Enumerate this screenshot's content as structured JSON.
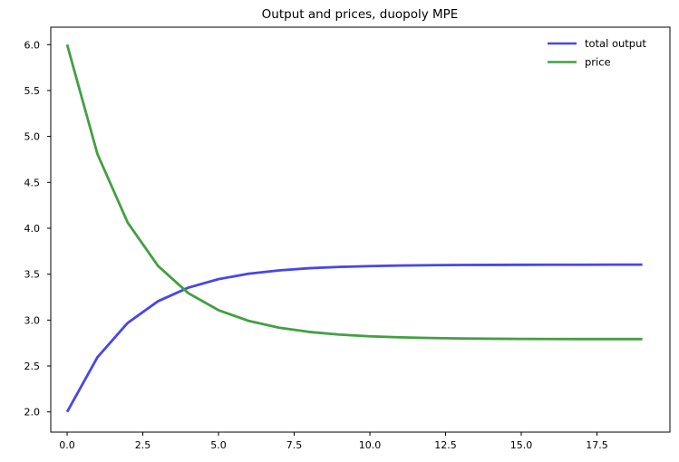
{
  "figure": {
    "title": "Output and prices, duopoly MPE",
    "background": "#ffffff",
    "text_color": "#000000"
  },
  "legend": {
    "position": "upper right",
    "items": [
      {
        "label": "total output",
        "color": "#4747e6"
      },
      {
        "label": "price",
        "color": "#42a042"
      }
    ]
  },
  "axes": {
    "x_ticks": [
      {
        "value": 0,
        "label": "0.0"
      },
      {
        "value": 2.5,
        "label": "2.5"
      },
      {
        "value": 5,
        "label": "5.0"
      },
      {
        "value": 7.5,
        "label": "7.5"
      },
      {
        "value": 10,
        "label": "10.0"
      },
      {
        "value": 12.5,
        "label": "12.5"
      },
      {
        "value": 15,
        "label": "15.0"
      },
      {
        "value": 17.5,
        "label": "17.5"
      }
    ],
    "y_ticks": [
      {
        "value": 2,
        "label": "2.0"
      },
      {
        "value": 2.5,
        "label": "2.5"
      },
      {
        "value": 3,
        "label": "3.0"
      },
      {
        "value": 3.5,
        "label": "3.5"
      },
      {
        "value": 4,
        "label": "4.0"
      },
      {
        "value": 4.5,
        "label": "4.5"
      },
      {
        "value": 5,
        "label": "5.0"
      },
      {
        "value": 5.5,
        "label": "5.5"
      },
      {
        "value": 6,
        "label": "6.0"
      }
    ]
  },
  "chart_data": {
    "type": "line",
    "title": "Output and prices, duopoly MPE",
    "xlabel": "",
    "ylabel": "",
    "x": [
      0,
      1,
      2,
      3,
      4,
      5,
      6,
      7,
      8,
      9,
      10,
      11,
      12,
      13,
      14,
      15,
      16,
      17,
      18,
      19
    ],
    "series": [
      {
        "name": "total output",
        "color": "#4747e6",
        "values": [
          2.0,
          2.595,
          2.969,
          3.205,
          3.353,
          3.446,
          3.505,
          3.541,
          3.565,
          3.579,
          3.588,
          3.594,
          3.598,
          3.6,
          3.601,
          3.602,
          3.603,
          3.603,
          3.604,
          3.604
        ]
      },
      {
        "name": "price",
        "color": "#42a042",
        "values": [
          6.0,
          4.81,
          4.062,
          3.591,
          3.294,
          3.108,
          2.991,
          2.917,
          2.871,
          2.842,
          2.823,
          2.812,
          2.805,
          2.8,
          2.797,
          2.795,
          2.794,
          2.793,
          2.793,
          2.793
        ]
      }
    ],
    "xlim": [
      -0.54,
      19.91
    ],
    "ylim": [
      1.78,
      6.19
    ],
    "grid": false,
    "legend_position": "upper right"
  }
}
